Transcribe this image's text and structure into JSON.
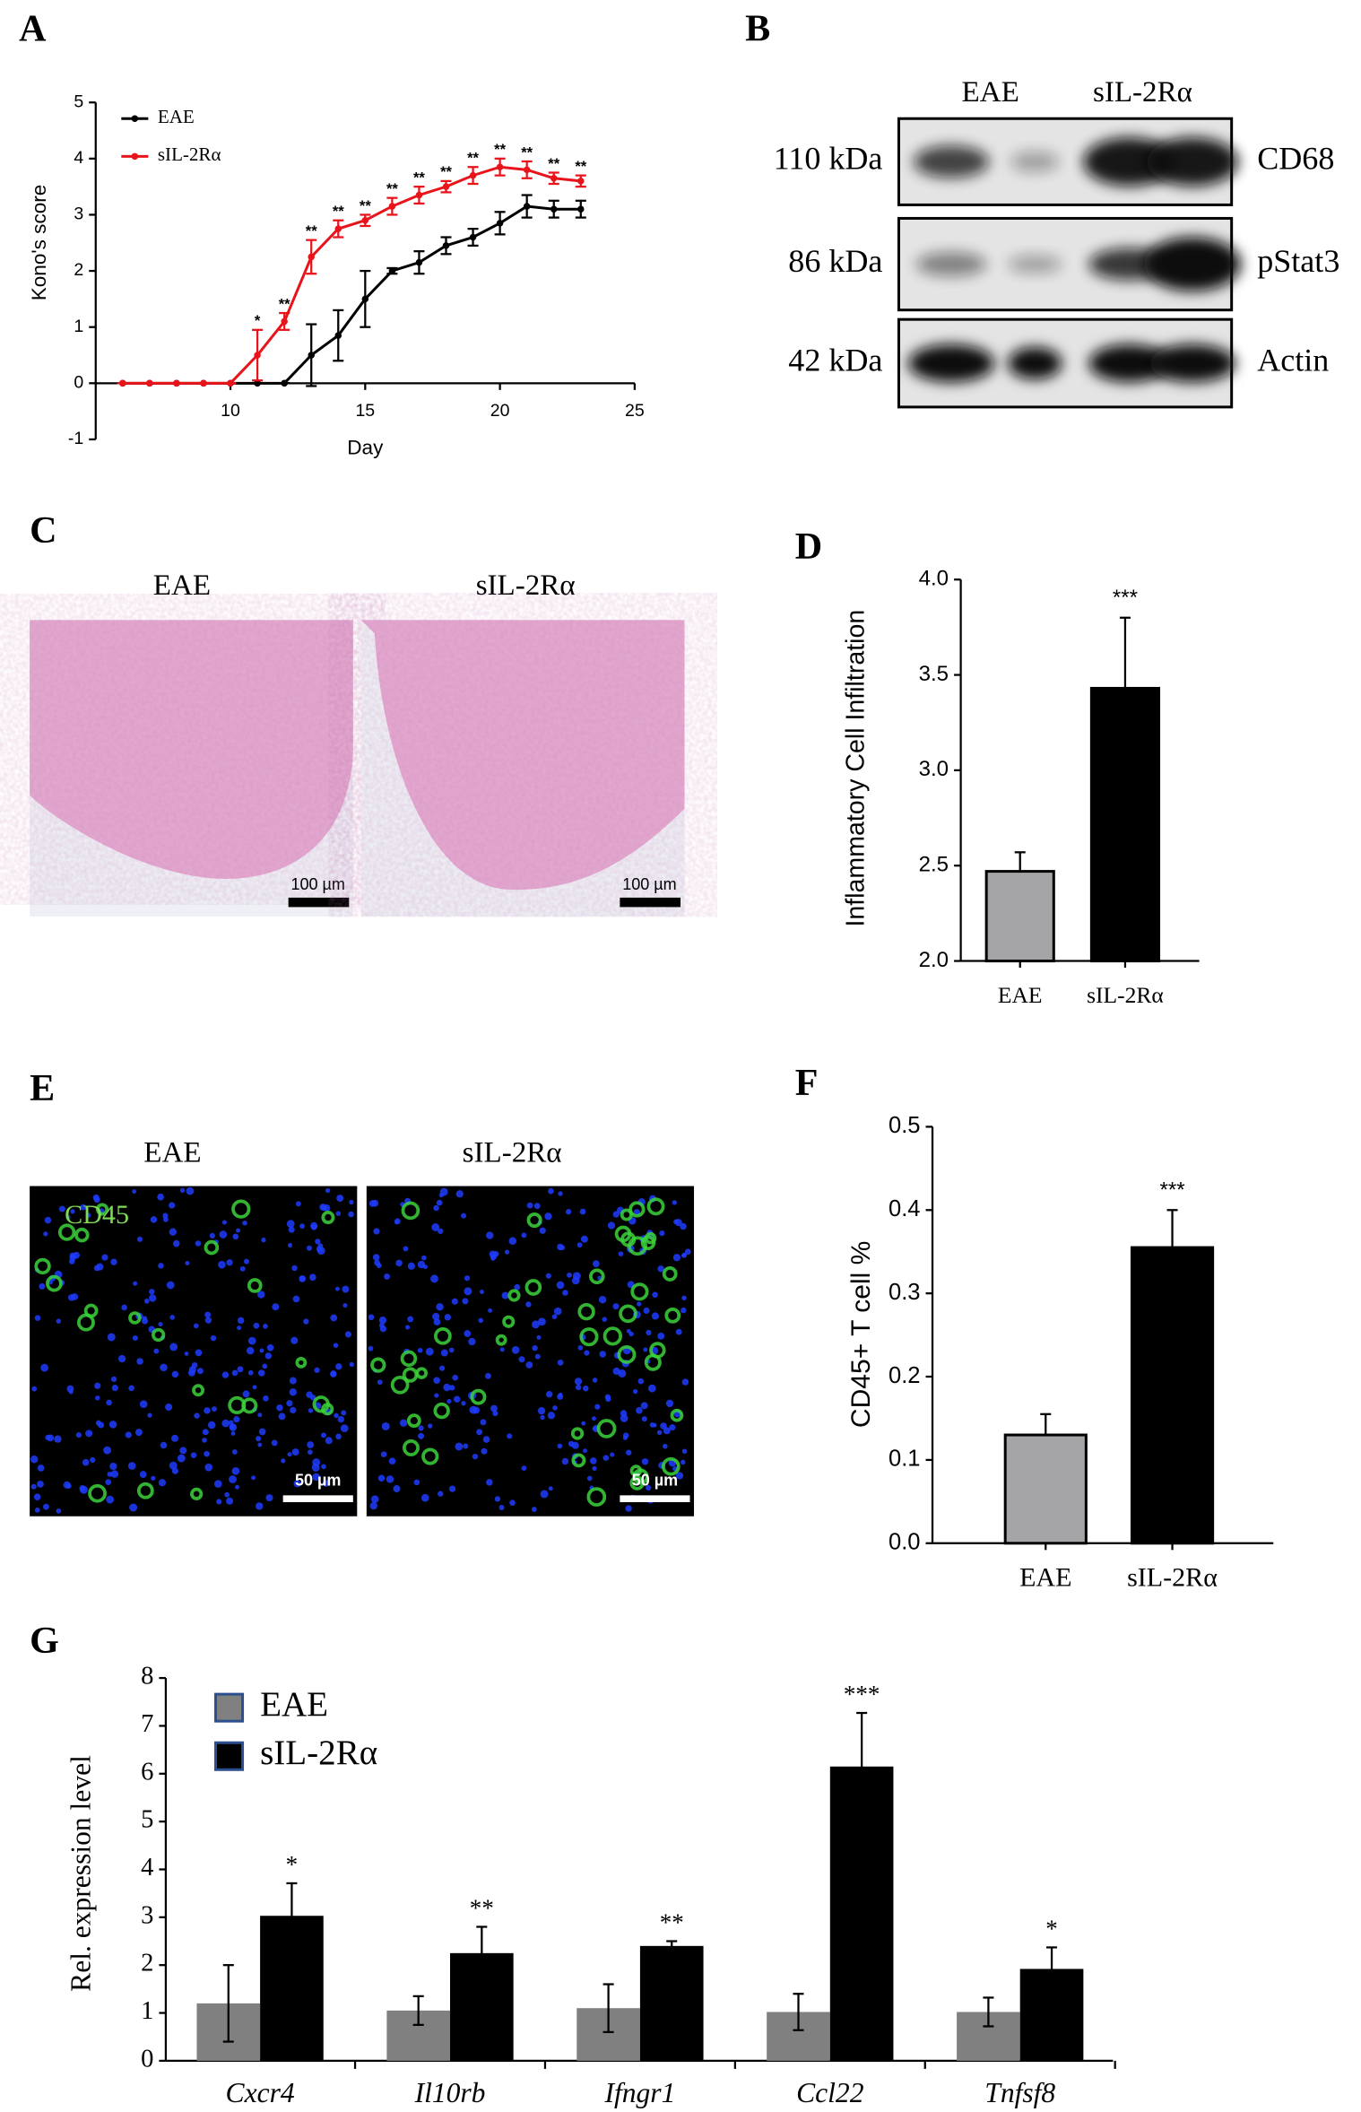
{
  "panel_labels": [
    "A",
    "B",
    "C",
    "D",
    "E",
    "F",
    "G"
  ],
  "blot": {
    "groups": [
      "EAE",
      "sIL-2Rα"
    ],
    "rows": [
      {
        "size": "110 kDa",
        "protein": "CD68"
      },
      {
        "size": "86 kDa",
        "protein": "pStat3"
      },
      {
        "size": "42 kDa",
        "protein": "Actin"
      }
    ]
  },
  "histology": {
    "groups": [
      "EAE",
      "sIL-2Rα"
    ],
    "scale_bars": [
      "100 µm",
      "100 µm"
    ]
  },
  "immunofluorescence": {
    "groups": [
      "EAE",
      "sIL-2Rα"
    ],
    "stain": "CD45",
    "scale_bars": [
      "50 µm",
      "50 µm"
    ]
  },
  "chart_data": [
    {
      "type": "line",
      "x_label": "Day",
      "y_label": "Kono's score",
      "x": [
        6,
        7,
        8,
        9,
        10,
        11,
        12,
        13,
        14,
        15,
        16,
        17,
        18,
        19,
        20,
        21,
        22,
        23
      ],
      "xlim": [
        5,
        25
      ],
      "xticks": [
        10,
        15,
        20,
        25
      ],
      "ylim": [
        -1,
        5
      ],
      "yticks": [
        -1,
        0,
        1,
        2,
        3,
        4,
        5
      ],
      "legend": "upper left",
      "series": [
        {
          "name": "EAE",
          "color": "#000000",
          "values": [
            0,
            0,
            0,
            0,
            0,
            0,
            0,
            0.5,
            0.85,
            1.5,
            2.0,
            2.15,
            2.45,
            2.6,
            2.85,
            3.15,
            3.1,
            3.1
          ],
          "errors": [
            0,
            0,
            0,
            0,
            0,
            0,
            0,
            0.55,
            0.45,
            0.5,
            0.05,
            0.2,
            0.15,
            0.15,
            0.2,
            0.2,
            0.15,
            0.15
          ]
        },
        {
          "name": "sIL-2Rα",
          "color": "#e8141b",
          "values": [
            0,
            0,
            0,
            0,
            0,
            0.5,
            1.1,
            2.25,
            2.75,
            2.9,
            3.15,
            3.35,
            3.5,
            3.7,
            3.85,
            3.8,
            3.65,
            3.6
          ],
          "errors": [
            0,
            0,
            0,
            0,
            0,
            0.45,
            0.15,
            0.3,
            0.15,
            0.1,
            0.15,
            0.15,
            0.1,
            0.15,
            0.15,
            0.15,
            0.1,
            0.1
          ],
          "annotations": [
            null,
            null,
            null,
            null,
            null,
            "*",
            "**",
            "**",
            "**",
            "**",
            "**",
            "**",
            "**",
            "**",
            "**",
            "**",
            "**",
            "**"
          ]
        }
      ]
    },
    {
      "type": "bar",
      "y_label": "Inflammatory Cell Infiltration",
      "categories": [
        "EAE",
        "sIL-2Rα"
      ],
      "values": [
        2.47,
        3.43
      ],
      "errors": [
        0.1,
        0.37
      ],
      "error_bars": "upper",
      "colors": [
        "#a5a5a8",
        "#000000"
      ],
      "annotations": [
        null,
        "***"
      ],
      "ylim": [
        2,
        4
      ],
      "yticks": [
        {
          "value": 2,
          "label": "2.0"
        },
        {
          "value": 2.5,
          "label": "2.5"
        },
        {
          "value": 3,
          "label": "3.0"
        },
        {
          "value": 3.5,
          "label": "3.5"
        },
        {
          "value": 4,
          "label": "4.0"
        }
      ]
    },
    {
      "type": "bar",
      "y_label": "CD45+ T cell %",
      "categories": [
        "EAE",
        "sIL-2Rα"
      ],
      "values": [
        0.13,
        0.355
      ],
      "errors": [
        0.025,
        0.045
      ],
      "error_bars": "upper",
      "colors": [
        "#a5a5a8",
        "#000000"
      ],
      "annotations": [
        null,
        "***"
      ],
      "ylim": [
        0,
        0.5
      ],
      "yticks": [
        {
          "value": 0,
          "label": "0.0"
        },
        0.1,
        0.2,
        0.3,
        0.4,
        0.5
      ]
    },
    {
      "type": "grouped_bar",
      "y_label": "Rel. expression level",
      "categories": [
        "Cxcr4",
        "Il10rb",
        "Ifngr1",
        "Ccl22",
        "Tnfsf8"
      ],
      "ylim": [
        0,
        8
      ],
      "yticks": [
        0,
        1,
        2,
        3,
        4,
        5,
        6,
        7,
        8
      ],
      "legend": "upper left",
      "series": [
        {
          "name": "EAE",
          "color": "#808080",
          "values": [
            1.2,
            1.05,
            1.1,
            1.02,
            1.02
          ],
          "errors": [
            0.8,
            0.3,
            0.5,
            0.38,
            0.3
          ]
        },
        {
          "name": "sIL-2Rα",
          "color": "#000000",
          "values": [
            3.03,
            2.25,
            2.4,
            6.15,
            1.92
          ],
          "errors": [
            0.68,
            0.55,
            0.1,
            1.12,
            0.45
          ],
          "annotations": [
            "*",
            "**",
            "**",
            "***",
            "*"
          ]
        }
      ]
    }
  ]
}
